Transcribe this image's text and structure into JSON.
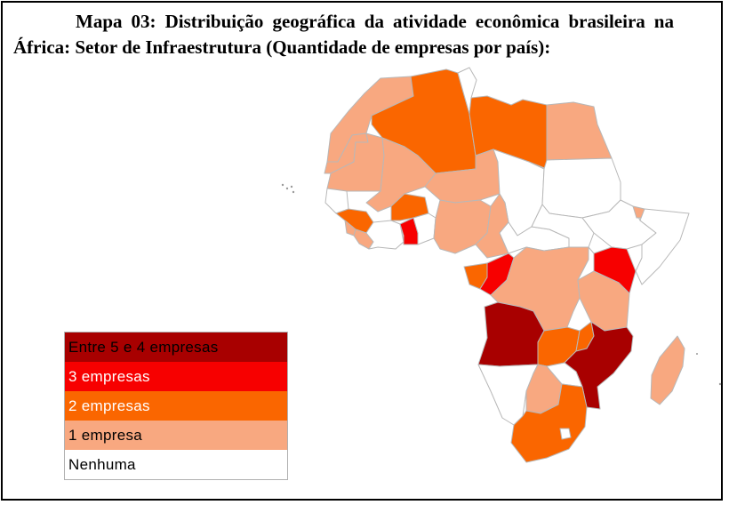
{
  "title": {
    "label": "Mapa 03:",
    "text": "Distribuição geográfica da atividade econômica brasileira na África: Setor de Infraestrutura (Quantidade de empresas por país):"
  },
  "colors": {
    "c5": "#a80000",
    "c3": "#f70000",
    "c2": "#fa6600",
    "c1": "#f8a880",
    "c0": "#ffffff",
    "border": "#b8b8b8"
  },
  "legend": [
    {
      "label": "Entre 5 e 4 empresas",
      "color": "#a80000",
      "text_color": "#000000"
    },
    {
      "label": "3 empresas",
      "color": "#f70000",
      "text_color": "#ffffff"
    },
    {
      "label": "2 empresas",
      "color": "#fa6600",
      "text_color": "#ffffff"
    },
    {
      "label": "1 empresa",
      "color": "#f8a880",
      "text_color": "#000000"
    },
    {
      "label": "Nenhuma",
      "color": "#ffffff",
      "text_color": "#000000"
    }
  ],
  "regions": [
    {
      "id": "morocco",
      "class": "c1"
    },
    {
      "id": "western-sahara",
      "class": "c1"
    },
    {
      "id": "algeria",
      "class": "c2"
    },
    {
      "id": "tunisia",
      "class": "c0"
    },
    {
      "id": "libya",
      "class": "c2"
    },
    {
      "id": "egypt",
      "class": "c1"
    },
    {
      "id": "mauritania",
      "class": "c1"
    },
    {
      "id": "mali",
      "class": "c1"
    },
    {
      "id": "niger",
      "class": "c1"
    },
    {
      "id": "chad",
      "class": "c0"
    },
    {
      "id": "sudan",
      "class": "c0"
    },
    {
      "id": "senegal",
      "class": "c0"
    },
    {
      "id": "guinea",
      "class": "c2"
    },
    {
      "id": "sierra-leone",
      "class": "c1"
    },
    {
      "id": "liberia",
      "class": "c1"
    },
    {
      "id": "cote-divoire",
      "class": "c0"
    },
    {
      "id": "burkina-faso",
      "class": "c2"
    },
    {
      "id": "ghana",
      "class": "c3"
    },
    {
      "id": "togo-benin",
      "class": "c0"
    },
    {
      "id": "nigeria",
      "class": "c1"
    },
    {
      "id": "cameroon",
      "class": "c1"
    },
    {
      "id": "car",
      "class": "c0"
    },
    {
      "id": "south-sudan",
      "class": "c0"
    },
    {
      "id": "ethiopia",
      "class": "c0"
    },
    {
      "id": "somalia",
      "class": "c0"
    },
    {
      "id": "djibouti",
      "class": "c1"
    },
    {
      "id": "gabon",
      "class": "c2"
    },
    {
      "id": "congo",
      "class": "c3"
    },
    {
      "id": "drc",
      "class": "c1"
    },
    {
      "id": "uganda",
      "class": "c0"
    },
    {
      "id": "kenya",
      "class": "c3"
    },
    {
      "id": "tanzania",
      "class": "c1"
    },
    {
      "id": "angola",
      "class": "c5"
    },
    {
      "id": "zambia",
      "class": "c2"
    },
    {
      "id": "malawi",
      "class": "c2"
    },
    {
      "id": "mozambique",
      "class": "c5"
    },
    {
      "id": "namibia",
      "class": "c0"
    },
    {
      "id": "botswana",
      "class": "c1"
    },
    {
      "id": "zimbabwe",
      "class": "c0"
    },
    {
      "id": "south-africa",
      "class": "c2"
    },
    {
      "id": "lesotho",
      "class": "c0"
    },
    {
      "id": "madagascar",
      "class": "c1"
    }
  ]
}
